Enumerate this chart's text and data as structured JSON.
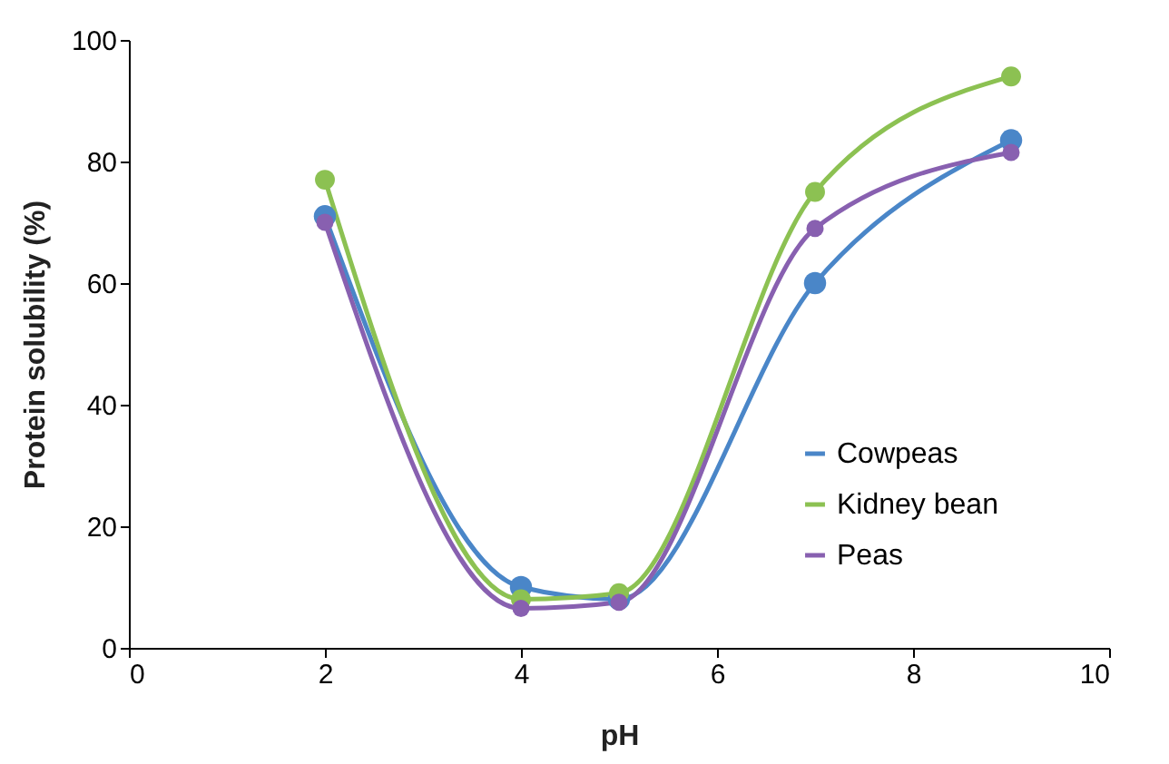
{
  "chart_data": {
    "type": "line",
    "xlabel": "pH",
    "ylabel": "Protein solubility (%)",
    "x": [
      2,
      4,
      5,
      7,
      9
    ],
    "series": [
      {
        "name": "Cowpeas",
        "color": "#4a86c8",
        "values": [
          71,
          10,
          8,
          60,
          83.5
        ]
      },
      {
        "name": "Kidney bean",
        "color": "#8cc152",
        "values": [
          77,
          8,
          9,
          75,
          94
        ]
      },
      {
        "name": "Peas",
        "color": "#8860b0",
        "values": [
          70,
          6.5,
          7.5,
          69,
          81.5
        ]
      }
    ],
    "xlim": [
      0,
      10
    ],
    "xticks": [
      0,
      2,
      4,
      6,
      8,
      10
    ],
    "ylim": [
      0,
      100
    ],
    "yticks": [
      0,
      20,
      40,
      60,
      80,
      100
    ],
    "grid": false,
    "legend": "bottom right",
    "marker": "circle",
    "line_style": "solid"
  }
}
